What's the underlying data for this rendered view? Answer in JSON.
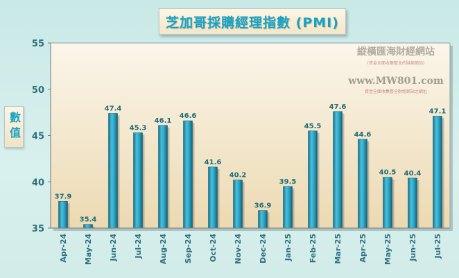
{
  "chart_data": {
    "type": "bar",
    "title": "芝加哥採購經理指數 (PMI)",
    "ylabel": "數值",
    "xlabel": "",
    "categories": [
      "Apr-24",
      "May-24",
      "Jun-24",
      "Jul-24",
      "Aug-24",
      "Sep-24",
      "Oct-24",
      "Nov-24",
      "Dec-24",
      "Jan-25",
      "Feb-25",
      "Mar-25",
      "Apr-25",
      "May-25",
      "Jun-25",
      "Jul-25"
    ],
    "values": [
      37.9,
      35.4,
      47.4,
      45.3,
      46.1,
      46.6,
      41.6,
      40.2,
      36.9,
      39.5,
      45.5,
      47.6,
      44.6,
      40.5,
      40.4,
      47.1
    ],
    "ylim": [
      35,
      55
    ],
    "yticks": [
      "35",
      "40",
      "45",
      "50",
      "55"
    ],
    "grid": false,
    "bar_color": "#2ba3c4",
    "label_color": "#1e6c78"
  },
  "watermark": {
    "name": "縱橫匯海財經網站",
    "name_sub": "(資金全面收集整全的財經網站)",
    "url": "www.MW801.com",
    "url_sub": "資金全面收集整全財經網站之網址"
  }
}
